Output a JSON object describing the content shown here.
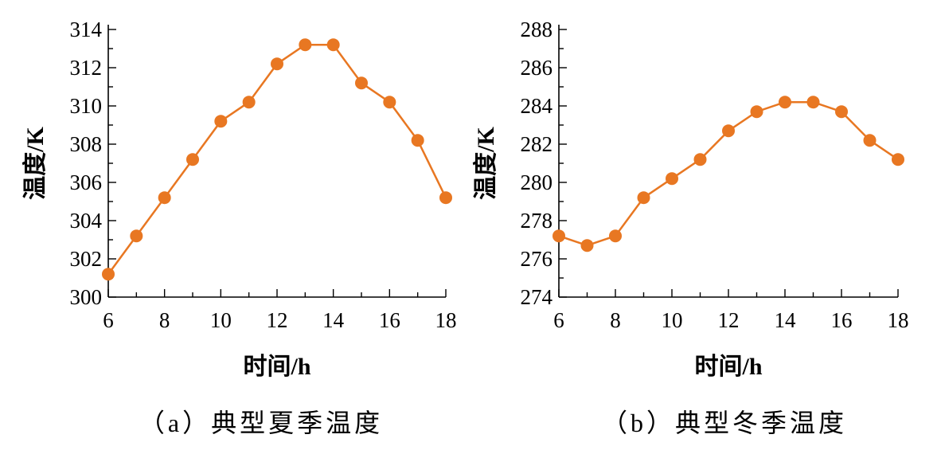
{
  "colors": {
    "series": "#E87722",
    "axis": "#000000"
  },
  "chart_data": [
    {
      "type": "line",
      "caption": "（a）典型夏季温度",
      "xlabel": "时间/h",
      "ylabel": "温度/K",
      "xlim": [
        6,
        18
      ],
      "ylim": [
        300,
        314
      ],
      "xticks": [
        "6",
        "8",
        "10",
        "12",
        "14",
        "16",
        "18"
      ],
      "yticks": [
        "300",
        "302",
        "304",
        "306",
        "308",
        "310",
        "312",
        "314"
      ],
      "x": [
        6,
        7,
        8,
        9,
        10,
        11,
        12,
        13,
        14,
        15,
        16,
        17,
        18
      ],
      "series": [
        {
          "values": [
            301.2,
            303.2,
            305.2,
            307.2,
            309.2,
            310.2,
            312.2,
            313.2,
            313.2,
            311.2,
            310.2,
            308.2,
            305.2
          ]
        }
      ]
    },
    {
      "type": "line",
      "caption": "（b）典型冬季温度",
      "xlabel": "时间/h",
      "ylabel": "温度/K",
      "xlim": [
        6,
        18
      ],
      "ylim": [
        274,
        288
      ],
      "xticks": [
        "6",
        "8",
        "10",
        "12",
        "14",
        "16",
        "18"
      ],
      "yticks": [
        "274",
        "276",
        "278",
        "280",
        "282",
        "284",
        "286",
        "288"
      ],
      "x": [
        6,
        7,
        8,
        9,
        10,
        11,
        12,
        13,
        14,
        15,
        16,
        17,
        18
      ],
      "series": [
        {
          "values": [
            277.2,
            276.7,
            277.2,
            279.2,
            280.2,
            281.2,
            282.7,
            283.7,
            284.2,
            284.2,
            283.7,
            282.2,
            281.2
          ]
        }
      ]
    }
  ]
}
